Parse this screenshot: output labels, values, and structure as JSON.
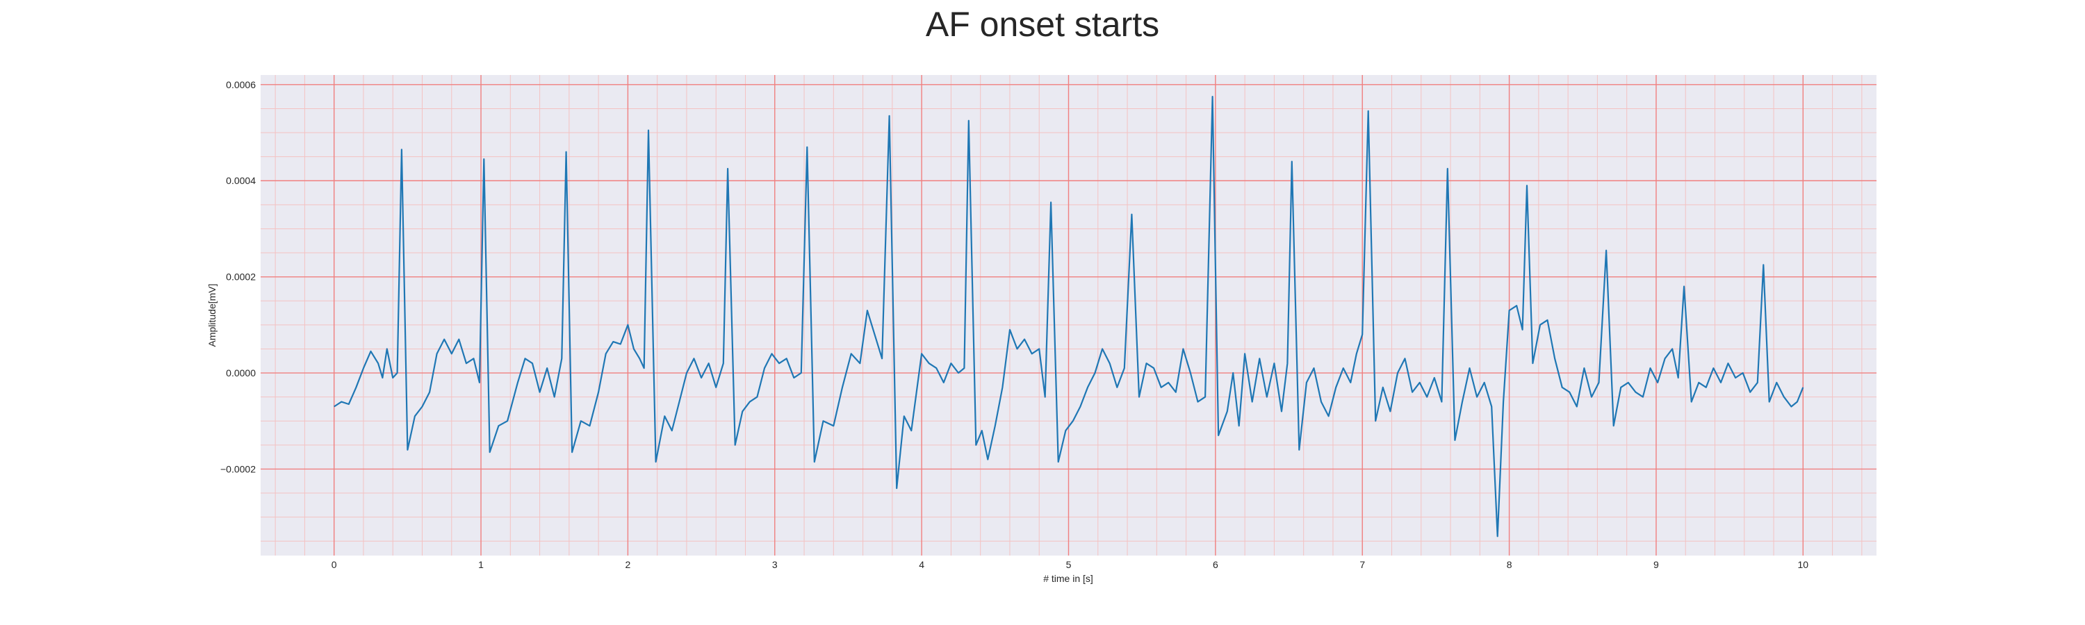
{
  "chart_data": {
    "type": "line",
    "title": "AF onset starts",
    "xlabel": "# time in [s]",
    "ylabel": "Amplitude[mV]",
    "xlim": [
      -0.5,
      10.5
    ],
    "ylim": [
      -0.00038,
      0.00062
    ],
    "xticks": [
      0,
      1,
      2,
      3,
      4,
      5,
      6,
      7,
      8,
      9,
      10
    ],
    "xtick_labels": [
      "0",
      "1",
      "2",
      "3",
      "4",
      "5",
      "6",
      "7",
      "8",
      "9",
      "10"
    ],
    "yticks": [
      -0.0002,
      0,
      0.0002,
      0.0004,
      0.0006
    ],
    "ytick_labels": [
      "−0.0002",
      "0.0000",
      "0.0002",
      "0.0004",
      "0.0006"
    ],
    "grid": {
      "major": true,
      "minor": true
    },
    "colors": {
      "line": "#1f77b4",
      "plot_background": "#eaeaf2",
      "major_grid": "#f08080",
      "minor_grid": "#f4c2c2"
    },
    "series": [
      {
        "r_peaks": {
          "t": [
            0.46,
            1.02,
            1.58,
            2.14,
            2.68,
            3.22,
            3.78,
            4.32,
            4.88,
            5.43,
            5.98,
            6.52,
            7.04,
            7.58,
            8.12,
            8.66,
            9.19,
            9.73
          ],
          "amplitude": [
            0.000465,
            0.000445,
            0.00046,
            0.000505,
            0.000425,
            0.00047,
            0.000535,
            0.000525,
            0.000355,
            0.00033,
            0.000575,
            0.00044,
            0.000545,
            0.000425,
            0.00039,
            0.000255,
            0.00018,
            0.000225
          ]
        },
        "points": [
          [
            0.0,
            -7e-05
          ],
          [
            0.05,
            -6e-05
          ],
          [
            0.1,
            -6.5e-05
          ],
          [
            0.15,
            -3e-05
          ],
          [
            0.2,
            1e-05
          ],
          [
            0.25,
            4.5e-05
          ],
          [
            0.3,
            2e-05
          ],
          [
            0.33,
            -1e-05
          ],
          [
            0.36,
            5e-05
          ],
          [
            0.4,
            -1e-05
          ],
          [
            0.43,
            0.0
          ],
          [
            0.46,
            0.000465
          ],
          [
            0.5,
            -0.00016
          ],
          [
            0.55,
            -9e-05
          ],
          [
            0.6,
            -7e-05
          ],
          [
            0.65,
            -4e-05
          ],
          [
            0.7,
            4e-05
          ],
          [
            0.75,
            7e-05
          ],
          [
            0.8,
            4e-05
          ],
          [
            0.85,
            7e-05
          ],
          [
            0.9,
            2e-05
          ],
          [
            0.95,
            3e-05
          ],
          [
            0.99,
            -2e-05
          ],
          [
            1.02,
            0.000445
          ],
          [
            1.06,
            -0.000165
          ],
          [
            1.12,
            -0.00011
          ],
          [
            1.18,
            -0.0001
          ],
          [
            1.25,
            -2e-05
          ],
          [
            1.3,
            3e-05
          ],
          [
            1.35,
            2e-05
          ],
          [
            1.4,
            -4e-05
          ],
          [
            1.45,
            1e-05
          ],
          [
            1.5,
            -5e-05
          ],
          [
            1.55,
            3e-05
          ],
          [
            1.58,
            0.00046
          ],
          [
            1.62,
            -0.000165
          ],
          [
            1.68,
            -0.0001
          ],
          [
            1.74,
            -0.00011
          ],
          [
            1.8,
            -4e-05
          ],
          [
            1.85,
            4e-05
          ],
          [
            1.9,
            6.5e-05
          ],
          [
            1.95,
            6e-05
          ],
          [
            2.0,
            0.0001
          ],
          [
            2.04,
            5e-05
          ],
          [
            2.08,
            3e-05
          ],
          [
            2.11,
            1e-05
          ],
          [
            2.14,
            0.000505
          ],
          [
            2.19,
            -0.000185
          ],
          [
            2.25,
            -9e-05
          ],
          [
            2.3,
            -0.00012
          ],
          [
            2.35,
            -6e-05
          ],
          [
            2.4,
            0.0
          ],
          [
            2.45,
            3e-05
          ],
          [
            2.5,
            -1e-05
          ],
          [
            2.55,
            2e-05
          ],
          [
            2.6,
            -3e-05
          ],
          [
            2.65,
            2e-05
          ],
          [
            2.68,
            0.000425
          ],
          [
            2.73,
            -0.00015
          ],
          [
            2.78,
            -8e-05
          ],
          [
            2.83,
            -6e-05
          ],
          [
            2.88,
            -5e-05
          ],
          [
            2.93,
            1e-05
          ],
          [
            2.98,
            4e-05
          ],
          [
            3.03,
            2e-05
          ],
          [
            3.08,
            3e-05
          ],
          [
            3.13,
            -1e-05
          ],
          [
            3.18,
            0.0
          ],
          [
            3.22,
            0.00047
          ],
          [
            3.27,
            -0.000185
          ],
          [
            3.33,
            -0.0001
          ],
          [
            3.4,
            -0.00011
          ],
          [
            3.46,
            -3e-05
          ],
          [
            3.52,
            4e-05
          ],
          [
            3.58,
            2e-05
          ],
          [
            3.63,
            0.00013
          ],
          [
            3.68,
            8e-05
          ],
          [
            3.73,
            3e-05
          ],
          [
            3.78,
            0.000535
          ],
          [
            3.83,
            -0.00024
          ],
          [
            3.88,
            -9e-05
          ],
          [
            3.93,
            -0.00012
          ],
          [
            4.0,
            4e-05
          ],
          [
            4.05,
            2e-05
          ],
          [
            4.1,
            1e-05
          ],
          [
            4.15,
            -2e-05
          ],
          [
            4.2,
            2e-05
          ],
          [
            4.25,
            0.0
          ],
          [
            4.29,
            1e-05
          ],
          [
            4.32,
            0.000525
          ],
          [
            4.37,
            -0.00015
          ],
          [
            4.41,
            -0.00012
          ],
          [
            4.45,
            -0.00018
          ],
          [
            4.5,
            -0.00011
          ],
          [
            4.55,
            -3e-05
          ],
          [
            4.6,
            9e-05
          ],
          [
            4.65,
            5e-05
          ],
          [
            4.7,
            7e-05
          ],
          [
            4.75,
            4e-05
          ],
          [
            4.8,
            5e-05
          ],
          [
            4.84,
            -5e-05
          ],
          [
            4.88,
            0.000355
          ],
          [
            4.93,
            -0.000185
          ],
          [
            4.98,
            -0.00012
          ],
          [
            5.03,
            -0.0001
          ],
          [
            5.08,
            -7e-05
          ],
          [
            5.13,
            -3e-05
          ],
          [
            5.18,
            0.0
          ],
          [
            5.23,
            5e-05
          ],
          [
            5.28,
            2e-05
          ],
          [
            5.33,
            -3e-05
          ],
          [
            5.38,
            1e-05
          ],
          [
            5.43,
            0.00033
          ],
          [
            5.48,
            -5e-05
          ],
          [
            5.53,
            2e-05
          ],
          [
            5.58,
            1e-05
          ],
          [
            5.63,
            -3e-05
          ],
          [
            5.68,
            -2e-05
          ],
          [
            5.73,
            -4e-05
          ],
          [
            5.78,
            5e-05
          ],
          [
            5.83,
            0.0
          ],
          [
            5.88,
            -6e-05
          ],
          [
            5.93,
            -5e-05
          ],
          [
            5.98,
            0.000575
          ],
          [
            6.02,
            -0.00013
          ],
          [
            6.08,
            -8e-05
          ],
          [
            6.12,
            0.0
          ],
          [
            6.16,
            -0.00011
          ],
          [
            6.2,
            4e-05
          ],
          [
            6.25,
            -6e-05
          ],
          [
            6.3,
            3e-05
          ],
          [
            6.35,
            -5e-05
          ],
          [
            6.4,
            2e-05
          ],
          [
            6.45,
            -8e-05
          ],
          [
            6.49,
            2e-05
          ],
          [
            6.52,
            0.00044
          ],
          [
            6.57,
            -0.00016
          ],
          [
            6.62,
            -2e-05
          ],
          [
            6.67,
            1e-05
          ],
          [
            6.72,
            -6e-05
          ],
          [
            6.77,
            -9e-05
          ],
          [
            6.82,
            -3e-05
          ],
          [
            6.87,
            1e-05
          ],
          [
            6.92,
            -2e-05
          ],
          [
            6.96,
            4e-05
          ],
          [
            7.0,
            8e-05
          ],
          [
            7.04,
            0.000545
          ],
          [
            7.09,
            -0.0001
          ],
          [
            7.14,
            -3e-05
          ],
          [
            7.19,
            -8e-05
          ],
          [
            7.24,
            0.0
          ],
          [
            7.29,
            3e-05
          ],
          [
            7.34,
            -4e-05
          ],
          [
            7.39,
            -2e-05
          ],
          [
            7.44,
            -5e-05
          ],
          [
            7.49,
            -1e-05
          ],
          [
            7.54,
            -6e-05
          ],
          [
            7.58,
            0.000425
          ],
          [
            7.63,
            -0.00014
          ],
          [
            7.68,
            -6e-05
          ],
          [
            7.73,
            1e-05
          ],
          [
            7.78,
            -5e-05
          ],
          [
            7.83,
            -2e-05
          ],
          [
            7.88,
            -7e-05
          ],
          [
            7.92,
            -0.00034
          ],
          [
            7.96,
            -6e-05
          ],
          [
            8.0,
            0.00013
          ],
          [
            8.05,
            0.00014
          ],
          [
            8.09,
            9e-05
          ],
          [
            8.12,
            0.00039
          ],
          [
            8.16,
            2e-05
          ],
          [
            8.21,
            0.0001
          ],
          [
            8.26,
            0.00011
          ],
          [
            8.31,
            3e-05
          ],
          [
            8.36,
            -3e-05
          ],
          [
            8.41,
            -4e-05
          ],
          [
            8.46,
            -7e-05
          ],
          [
            8.51,
            1e-05
          ],
          [
            8.56,
            -5e-05
          ],
          [
            8.61,
            -2e-05
          ],
          [
            8.66,
            0.000255
          ],
          [
            8.71,
            -0.00011
          ],
          [
            8.76,
            -3e-05
          ],
          [
            8.81,
            -2e-05
          ],
          [
            8.86,
            -4e-05
          ],
          [
            8.91,
            -5e-05
          ],
          [
            8.96,
            1e-05
          ],
          [
            9.01,
            -2e-05
          ],
          [
            9.06,
            3e-05
          ],
          [
            9.11,
            5e-05
          ],
          [
            9.15,
            -1e-05
          ],
          [
            9.19,
            0.00018
          ],
          [
            9.24,
            -6e-05
          ],
          [
            9.29,
            -2e-05
          ],
          [
            9.34,
            -3e-05
          ],
          [
            9.39,
            1e-05
          ],
          [
            9.44,
            -2e-05
          ],
          [
            9.49,
            2e-05
          ],
          [
            9.54,
            -1e-05
          ],
          [
            9.59,
            0.0
          ],
          [
            9.64,
            -4e-05
          ],
          [
            9.69,
            -2e-05
          ],
          [
            9.73,
            0.000225
          ],
          [
            9.77,
            -6e-05
          ],
          [
            9.82,
            -2e-05
          ],
          [
            9.87,
            -5e-05
          ],
          [
            9.92,
            -7e-05
          ],
          [
            9.96,
            -6e-05
          ],
          [
            10.0,
            -3e-05
          ]
        ]
      }
    ]
  }
}
